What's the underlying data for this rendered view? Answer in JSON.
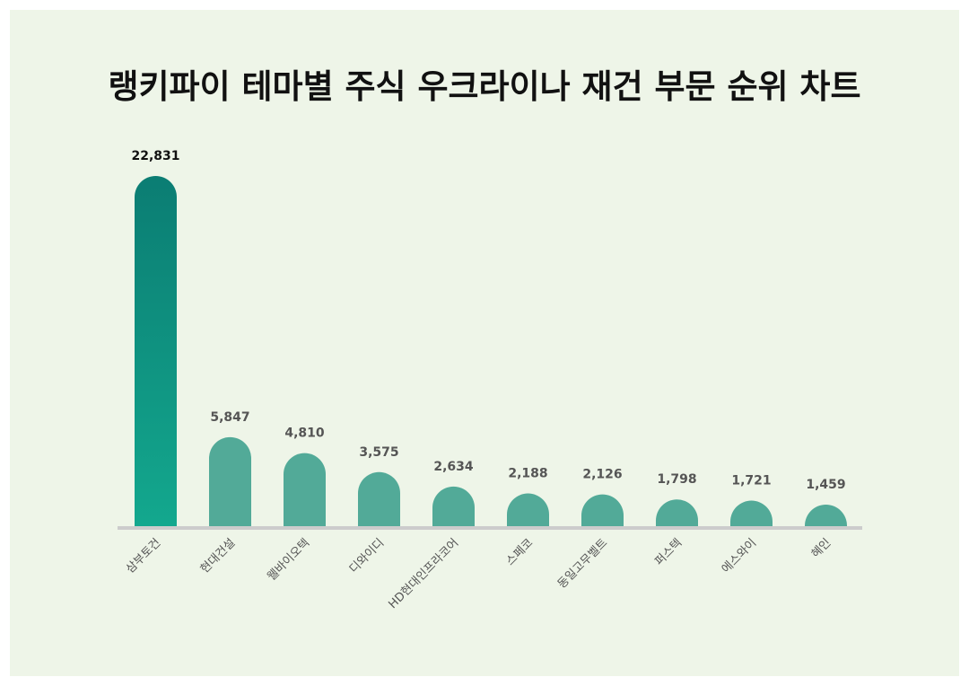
{
  "title": "랭키파이 테마별 주식 우크라이나 재건 부문 순위 차트",
  "colors": {
    "background": "#eef5e8",
    "top_bar_top": "#0b7d73",
    "top_bar_bottom": "#13a88e",
    "bar": "#52aa98",
    "baseline": "#cccccc",
    "top_value_label": "#111111",
    "value_label": "#555555"
  },
  "chart_data": {
    "type": "bar",
    "title": "랭키파이 테마별 주식 우크라이나 재건 부문 순위 차트",
    "categories": [
      "삼부토건",
      "현대건설",
      "웰바이오텍",
      "디와이디",
      "HD현대인프라코어",
      "스페코",
      "동일고무벨트",
      "퍼스텍",
      "에스와이",
      "혜인"
    ],
    "values": [
      22831,
      5847,
      4810,
      3575,
      2634,
      2188,
      2126,
      1798,
      1721,
      1459
    ],
    "value_labels": [
      "22,831",
      "5,847",
      "4,810",
      "3,575",
      "2,634",
      "2,188",
      "2,126",
      "1,798",
      "1,721",
      "1,459"
    ],
    "xlabel": "",
    "ylabel": "",
    "ylim": [
      0,
      22831
    ],
    "grid": false,
    "legend": "none"
  }
}
